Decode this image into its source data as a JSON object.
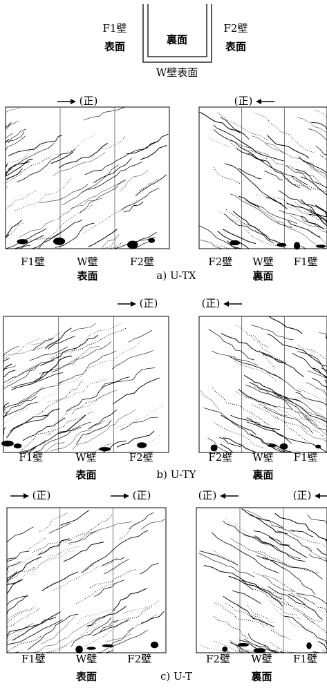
{
  "legend": {
    "f1_label": "F1壁",
    "f1_face": "表面",
    "inner": "裏面",
    "f2_label": "F2壁",
    "f2_face": "表面",
    "w_label": "W壁表面"
  },
  "panels": [
    {
      "caption": "a) U-TX",
      "left_directions": [
        "(正)"
      ],
      "right_directions": [
        "(正)"
      ],
      "left": {
        "walls": [
          "F1壁",
          "W壁",
          "F2壁"
        ],
        "face": "表面"
      },
      "right": {
        "walls": [
          "F2壁",
          "W壁",
          "F1壁"
        ],
        "face": "裏面"
      }
    },
    {
      "caption": "b) U-TY",
      "left_directions": [
        "(正)"
      ],
      "right_directions": [
        "(正)"
      ],
      "left": {
        "walls": [
          "F1壁",
          "W壁",
          "F2壁"
        ],
        "face": "表面"
      },
      "right": {
        "walls": [
          "F2壁",
          "W壁",
          "F1壁"
        ],
        "face": "裏面"
      }
    },
    {
      "caption": "c) U-T",
      "left_directions": [
        "(正)",
        "(正)"
      ],
      "right_directions": [
        "(正)",
        "(正)"
      ],
      "left": {
        "walls": [
          "F1壁",
          "W壁",
          "F2壁"
        ],
        "face": "表面"
      },
      "right": {
        "walls": [
          "F2壁",
          "W壁",
          "F1壁"
        ],
        "face": "裏面"
      }
    }
  ]
}
